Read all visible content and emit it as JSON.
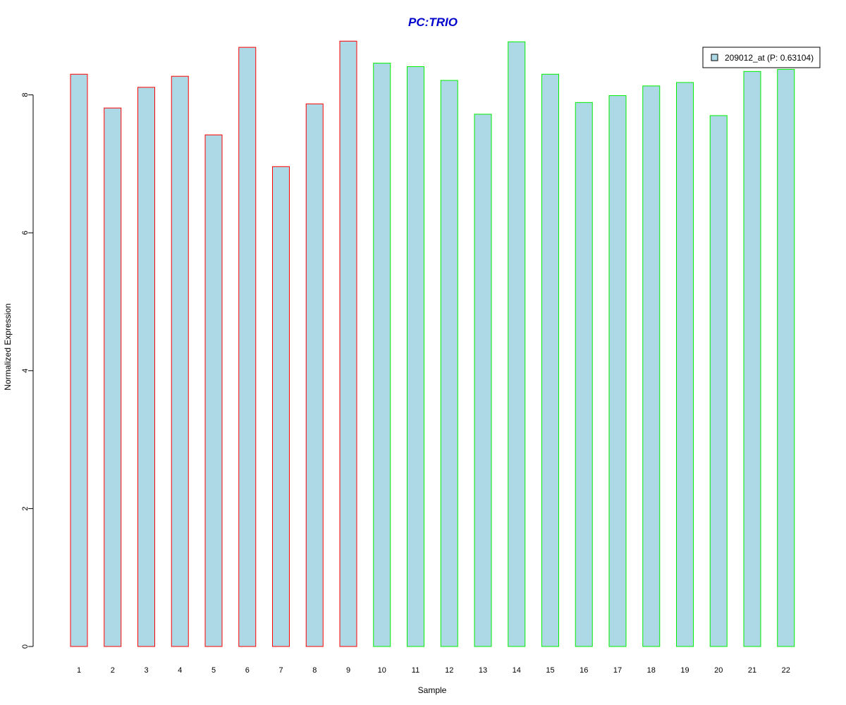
{
  "chart_data": {
    "type": "bar",
    "title": "PC:TRIO",
    "xlabel": "Sample",
    "ylabel": "Normalized Expression",
    "ylim": [
      0,
      8.8
    ],
    "yticks": [
      "0",
      "2",
      "4",
      "6",
      "8"
    ],
    "categories": [
      "1",
      "2",
      "3",
      "4",
      "5",
      "6",
      "7",
      "8",
      "9",
      "10",
      "11",
      "12",
      "13",
      "14",
      "15",
      "16",
      "17",
      "18",
      "19",
      "20",
      "21",
      "22"
    ],
    "series": [
      {
        "name": "209012_at (P: 0.63104)",
        "values": [
          8.3,
          7.81,
          8.11,
          8.27,
          7.42,
          8.69,
          6.96,
          7.87,
          8.78,
          8.46,
          8.41,
          8.21,
          7.72,
          8.77,
          8.3,
          7.89,
          7.99,
          8.13,
          8.18,
          7.7,
          8.34,
          8.37
        ]
      }
    ],
    "group_outline": [
      "group1",
      "group1",
      "group1",
      "group1",
      "group1",
      "group1",
      "group1",
      "group1",
      "group1",
      "group2",
      "group2",
      "group2",
      "group2",
      "group2",
      "group2",
      "group2",
      "group2",
      "group2",
      "group2",
      "group2",
      "group2",
      "group2"
    ],
    "legend_position": "top-right",
    "grid": false
  },
  "colors": {
    "title": "#0000cc",
    "bar_fill": "#add8e6",
    "group1_outline": "#ff0000",
    "group2_outline": "#00ee00",
    "axis": "#000000"
  }
}
